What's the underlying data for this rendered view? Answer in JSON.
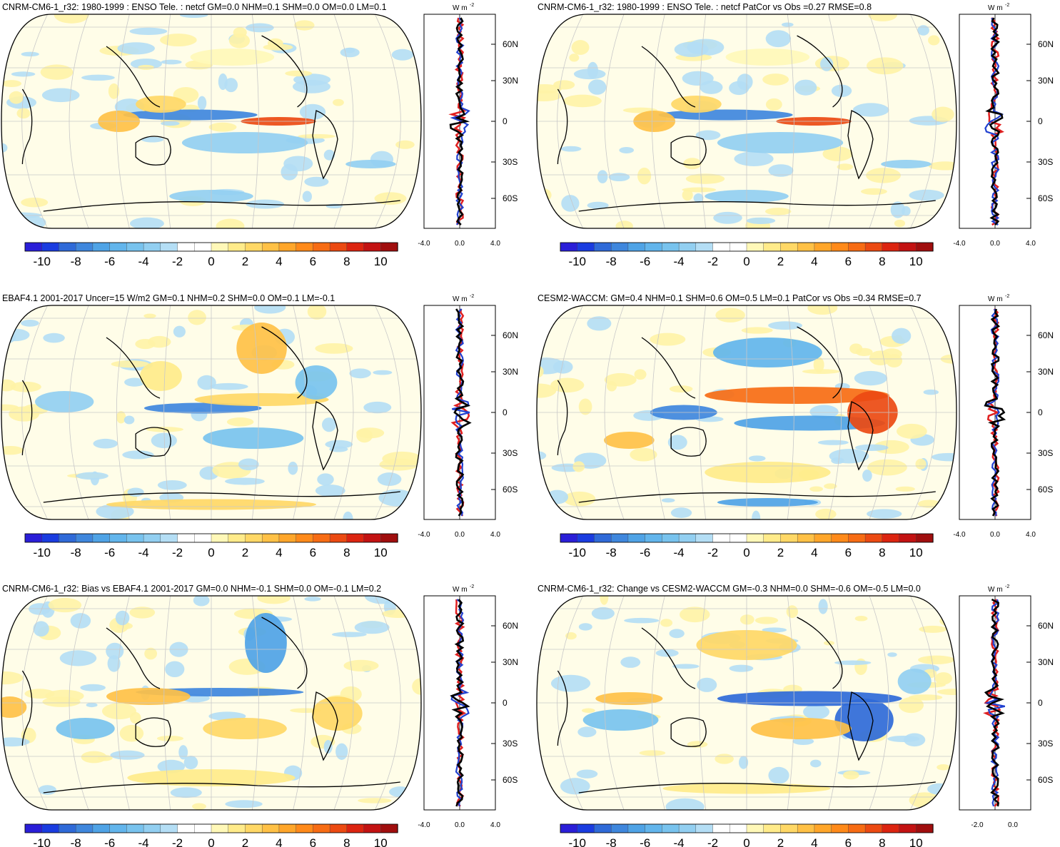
{
  "figure": {
    "colorbar_levels": [
      "-10",
      "-8",
      "-6",
      "-4",
      "-2",
      "0",
      "2",
      "4",
      "6",
      "8",
      "10"
    ],
    "colorbar_colors": [
      "#2a1ed8",
      "#1a3ce0",
      "#2f6ad8",
      "#3f87dd",
      "#4fa3e6",
      "#62b5ec",
      "#78c3ee",
      "#92cff1",
      "#b4def5",
      "#ffffff",
      "#ffffff",
      "#fff8b8",
      "#ffeb8a",
      "#ffd866",
      "#ffc146",
      "#ffa62a",
      "#ff8a1a",
      "#f76c14",
      "#ec4a12",
      "#dc2410",
      "#c31212",
      "#a00e0e"
    ],
    "lat_labels": [
      "60N",
      "30N",
      "0",
      "30S",
      "60S"
    ],
    "profile_unit": "W m",
    "profile_unit_exp": "-2"
  },
  "panels": [
    {
      "title": "CNRM-CM6-1_r32: 1980-1999 : ENSO Tele. : netcf GM=0.0 NHM=0.1 SHM=0.0 OM=0.0 LM=0.1",
      "profile_x_labels": [
        "-4.0",
        "0.0",
        "4.0"
      ],
      "pattern": "enso"
    },
    {
      "title": "CNRM-CM6-1_r32: 1980-1999 : ENSO Tele. : netcf PatCor vs Obs =0.27 RMSE=0.8",
      "profile_x_labels": [
        "-4.0",
        "0.0",
        "4.0"
      ],
      "pattern": "enso"
    },
    {
      "title": "EBAF4.1 2001-2017 Uncer=15 W/m2 GM=0.1 NHM=0.2 SHM=0.0 OM=0.1 LM=-0.1",
      "profile_x_labels": [
        "-4.0",
        "0.0",
        "4.0"
      ],
      "pattern": "obs"
    },
    {
      "title": "CESM2-WACCM: GM=0.4 NHM=0.1 SHM=0.6 OM=0.5 LM=0.1 PatCor vs Obs =0.34 RMSE=0.7",
      "profile_x_labels": [
        "-4.0",
        "0.0",
        "4.0"
      ],
      "pattern": "cesm"
    },
    {
      "title": "CNRM-CM6-1_r32: Bias vs EBAF4.1 2001-2017 GM=0.0 NHM=-0.1 SHM=0.0 OM=-0.1 LM=0.2",
      "profile_x_labels": [
        "-4.0",
        "0.0",
        "4.0"
      ],
      "pattern": "bias"
    },
    {
      "title": "CNRM-CM6-1_r32: Change vs CESM2-WACCM GM=-0.3 NHM=0.0 SHM=-0.6 OM=-0.5 LM=0.0",
      "profile_x_labels": [
        "-2.0",
        "0.0"
      ],
      "pattern": "change"
    }
  ]
}
